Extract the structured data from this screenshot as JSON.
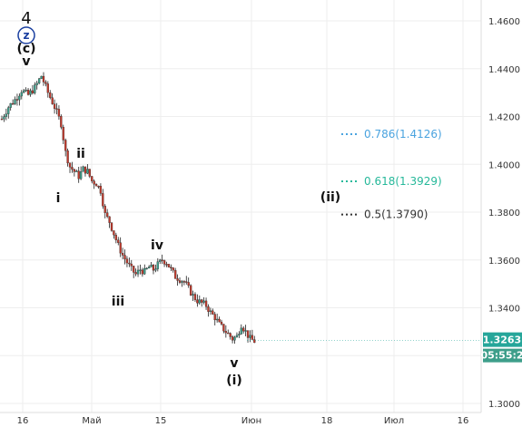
{
  "chart_data": {
    "type": "candlestick",
    "x_ticks": [
      "16",
      "Май",
      "15",
      "Июн",
      "18",
      "Июл",
      "16"
    ],
    "y_ticks": [
      "1.4600",
      "1.4400",
      "1.4200",
      "1.4000",
      "1.3800",
      "1.3600",
      "1.3400",
      "1.3200",
      "1.3000"
    ],
    "ylim": [
      1.297,
      1.466
    ],
    "grid": true,
    "price_path": [
      [
        0,
        1.419
      ],
      [
        3,
        1.424
      ],
      [
        6,
        1.427
      ],
      [
        9,
        1.431
      ],
      [
        12,
        1.429
      ],
      [
        15,
        1.432
      ],
      [
        18,
        1.437
      ],
      [
        21,
        1.43
      ],
      [
        24,
        1.424
      ],
      [
        27,
        1.417
      ],
      [
        29,
        1.405
      ],
      [
        31,
        1.399
      ],
      [
        33,
        1.397
      ],
      [
        35,
        1.395
      ],
      [
        37,
        1.398
      ],
      [
        39,
        1.397
      ],
      [
        41,
        1.393
      ],
      [
        43,
        1.392
      ],
      [
        45,
        1.389
      ],
      [
        47,
        1.379
      ],
      [
        49,
        1.376
      ],
      [
        51,
        1.371
      ],
      [
        53,
        1.366
      ],
      [
        55,
        1.362
      ],
      [
        57,
        1.359
      ],
      [
        59,
        1.356
      ],
      [
        61,
        1.354
      ],
      [
        63,
        1.356
      ],
      [
        65,
        1.355
      ],
      [
        67,
        1.357
      ],
      [
        69,
        1.356
      ],
      [
        71,
        1.358
      ],
      [
        73,
        1.36
      ],
      [
        75,
        1.359
      ],
      [
        77,
        1.356
      ],
      [
        79,
        1.353
      ],
      [
        81,
        1.352
      ],
      [
        83,
        1.351
      ],
      [
        85,
        1.348
      ],
      [
        87,
        1.345
      ],
      [
        89,
        1.343
      ],
      [
        91,
        1.342
      ],
      [
        93,
        1.341
      ],
      [
        95,
        1.338
      ],
      [
        97,
        1.336
      ],
      [
        99,
        1.333
      ],
      [
        101,
        1.331
      ],
      [
        103,
        1.329
      ],
      [
        105,
        1.327
      ],
      [
        107,
        1.328
      ],
      [
        109,
        1.333
      ],
      [
        111,
        1.33
      ],
      [
        113,
        1.327
      ],
      [
        115,
        1.326
      ]
    ],
    "last_price": "1.3263",
    "countdown": "05:55:2",
    "fibonacci_levels": [
      {
        "label": "0.786(1.4126)",
        "price": 1.4126,
        "color": "#4aa3df"
      },
      {
        "label": "0.618(1.3929)",
        "price": 1.3929,
        "color": "#26b89a"
      },
      {
        "label": "0.5(1.3790)",
        "price": 1.379,
        "color": "#333333"
      }
    ],
    "wave_labels": [
      {
        "text": "4",
        "size": "big"
      },
      {
        "text": "z",
        "size": "circled"
      },
      {
        "text": "(c)",
        "size": "normal"
      },
      {
        "text": "v",
        "size": "normal"
      },
      {
        "text": "ii",
        "size": "normal"
      },
      {
        "text": "i",
        "size": "normal"
      },
      {
        "text": "iv",
        "size": "normal"
      },
      {
        "text": "iii",
        "size": "normal"
      },
      {
        "text": "v",
        "size": "normal"
      },
      {
        "text": "(i)",
        "size": "normal"
      },
      {
        "text": "(ii)",
        "size": "normal"
      }
    ],
    "colors": {
      "up": "#3d9e8a",
      "down": "#c0392b",
      "wick": "#222222",
      "badge_price": "#26a69a",
      "badge_time": "#3d9e8a",
      "circle": "#1a3fa0"
    }
  }
}
